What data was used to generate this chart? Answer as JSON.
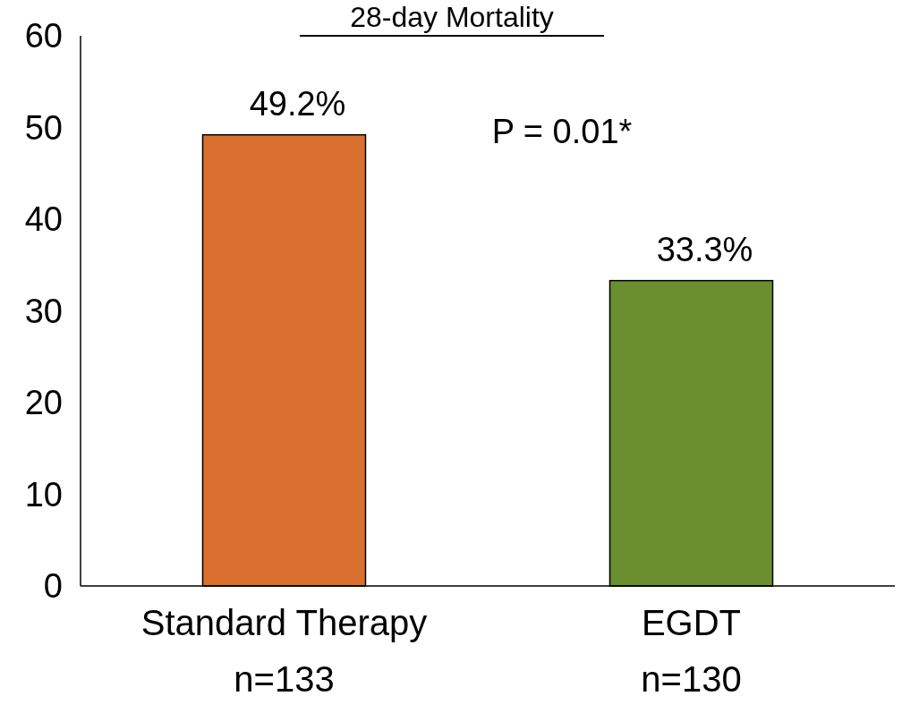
{
  "chart_data": {
    "type": "bar",
    "title": "28-day Mortality",
    "categories": [
      "Standard Therapy\nn=133",
      "EGDT\nn=130"
    ],
    "values": [
      49.2,
      33.3
    ],
    "colors": [
      "#d9702f",
      "#6b8e2f"
    ],
    "value_labels": [
      "49.2%",
      "33.3%"
    ],
    "ylim": [
      0,
      60
    ],
    "yticks": [
      0,
      10,
      20,
      30,
      40,
      50,
      60
    ],
    "annotations": [
      "P = 0.01*"
    ],
    "grid": false
  }
}
